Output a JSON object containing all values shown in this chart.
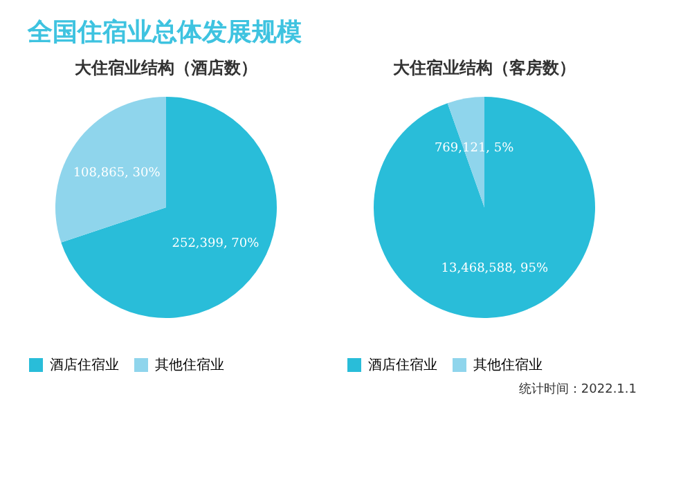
{
  "chart_data": [
    {
      "type": "pie",
      "title": "大住宿业结构（酒店数）",
      "annotations": [
        "全国住宿业总体发展规模"
      ],
      "categories": [
        "酒店住宿业",
        "其他住宿业"
      ],
      "values": [
        252399,
        108865
      ],
      "value_labels": [
        "252,399, 70%",
        "108,865, 30%"
      ],
      "colors": [
        "#29bdd9",
        "#8fd5ec"
      ],
      "legend": "bottom"
    },
    {
      "type": "pie",
      "title": "大住宿业结构（客房数）",
      "annotations": [
        "统计时间：2022.1.1"
      ],
      "categories": [
        "酒店住宿业",
        "其他住宿业"
      ],
      "values": [
        13468588,
        769121
      ],
      "value_labels": [
        "13,468,588, 95%",
        "769,121, 5%"
      ],
      "colors": [
        "#29bdd9",
        "#8fd5ec"
      ],
      "legend": "bottom"
    }
  ]
}
